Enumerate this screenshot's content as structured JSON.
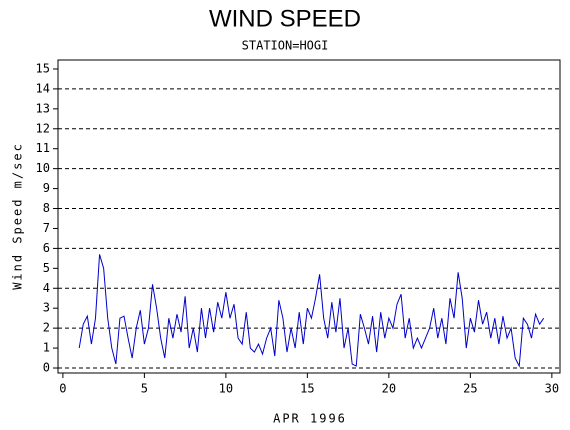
{
  "chart_data": {
    "type": "line",
    "title": "WIND SPEED",
    "subtitle": "STATION=HOGI",
    "x_label": "APR 1996",
    "y_label": "Wind Speed m/sec",
    "xlim": [
      -0.3,
      30.5
    ],
    "xticks": [
      0,
      5,
      10,
      15,
      20,
      25,
      30
    ],
    "ylim": [
      -0.25,
      15.45
    ],
    "yticks": [
      0,
      1,
      2,
      3,
      4,
      5,
      6,
      7,
      8,
      9,
      10,
      11,
      12,
      13,
      14,
      15
    ],
    "grid_values": [
      0,
      2,
      4,
      6,
      8,
      10,
      12,
      14
    ],
    "grid": true,
    "x": [
      1,
      1.25,
      1.5,
      1.75,
      2,
      2.25,
      2.5,
      2.75,
      3,
      3.25,
      3.5,
      3.75,
      4,
      4.25,
      4.5,
      4.75,
      5,
      5.25,
      5.5,
      5.75,
      6,
      6.25,
      6.5,
      6.75,
      7,
      7.25,
      7.5,
      7.75,
      8,
      8.25,
      8.5,
      8.75,
      9,
      9.25,
      9.5,
      9.75,
      10,
      10.25,
      10.5,
      10.75,
      11,
      11.25,
      11.5,
      11.75,
      12,
      12.25,
      12.5,
      12.75,
      13,
      13.25,
      13.5,
      13.75,
      14,
      14.25,
      14.5,
      14.75,
      15,
      15.25,
      15.5,
      15.75,
      16,
      16.25,
      16.5,
      16.75,
      17,
      17.25,
      17.5,
      17.75,
      18,
      18.25,
      18.5,
      18.75,
      19,
      19.25,
      19.5,
      19.75,
      20,
      20.25,
      20.5,
      20.75,
      21,
      21.25,
      21.5,
      21.75,
      22,
      22.25,
      22.5,
      22.75,
      23,
      23.25,
      23.5,
      23.75,
      24,
      24.25,
      24.5,
      24.75,
      25,
      25.25,
      25.5,
      25.75,
      26,
      26.25,
      26.5,
      26.75,
      27,
      27.25,
      27.5,
      27.75,
      28,
      28.25,
      28.5,
      28.75,
      29,
      29.25,
      29.5
    ],
    "series": [
      {
        "name": "Wind Speed",
        "color": "#0000cc",
        "values": [
          1.0,
          2.2,
          2.6,
          1.2,
          2.5,
          5.7,
          5.0,
          2.5,
          1.0,
          0.2,
          2.5,
          2.6,
          1.5,
          0.5,
          2.0,
          2.9,
          1.2,
          2.0,
          4.2,
          3.0,
          1.5,
          0.5,
          2.5,
          1.5,
          2.7,
          1.8,
          3.6,
          1.0,
          2.0,
          0.8,
          3.0,
          1.5,
          3.0,
          1.8,
          3.3,
          2.5,
          3.8,
          2.5,
          3.2,
          1.5,
          1.2,
          2.8,
          1.0,
          0.8,
          1.2,
          0.7,
          1.5,
          2.0,
          0.6,
          3.4,
          2.5,
          0.8,
          2.0,
          1.0,
          2.8,
          1.2,
          3.0,
          2.5,
          3.5,
          4.7,
          2.5,
          1.5,
          3.3,
          1.8,
          3.5,
          1.0,
          2.0,
          0.2,
          0.1,
          2.7,
          2.0,
          1.2,
          2.6,
          0.8,
          2.8,
          1.5,
          2.5,
          2.0,
          3.2,
          3.7,
          1.5,
          2.5,
          1.0,
          1.5,
          1.0,
          1.5,
          2.0,
          3.0,
          1.5,
          2.5,
          1.2,
          3.5,
          2.5,
          4.8,
          3.5,
          1.0,
          2.5,
          1.8,
          3.4,
          2.2,
          2.8,
          1.5,
          2.5,
          1.2,
          2.6,
          1.5,
          2.0,
          0.5,
          0.1,
          2.5,
          2.2,
          1.5,
          2.7,
          2.2,
          2.5
        ]
      }
    ]
  }
}
